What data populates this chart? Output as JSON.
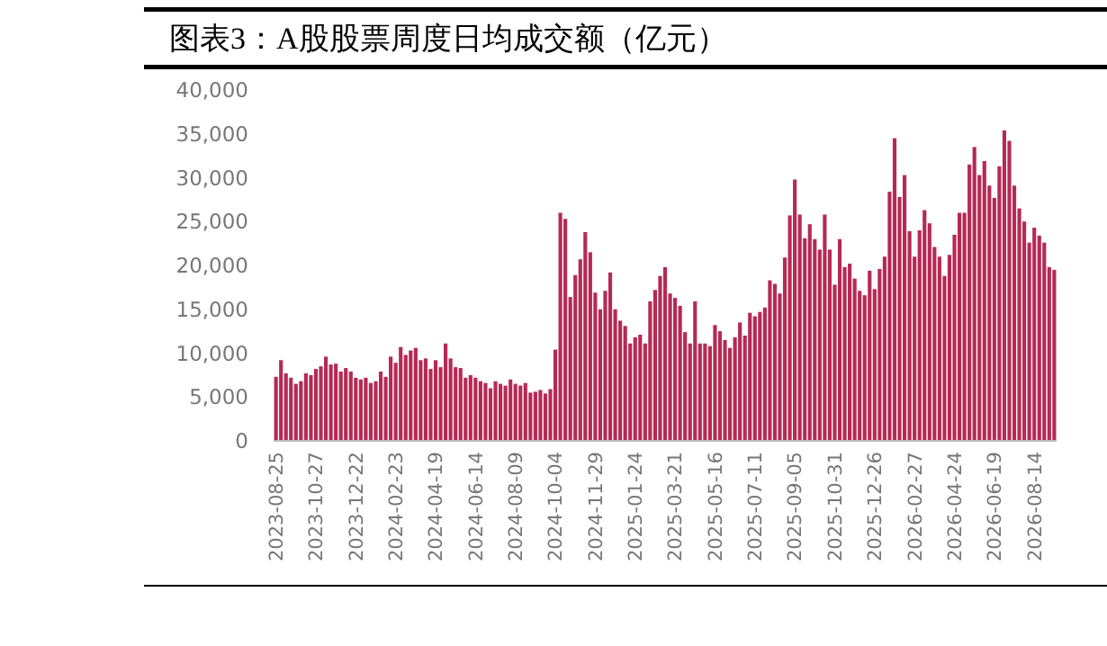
{
  "chart_data": {
    "type": "bar",
    "title": "图表3：A股股票周度日均成交额（亿元）",
    "categories": [
      "2023-08-25",
      null,
      null,
      null,
      null,
      null,
      null,
      null,
      "2023-10-27",
      null,
      null,
      null,
      null,
      null,
      null,
      null,
      "2023-12-22",
      null,
      null,
      null,
      null,
      null,
      null,
      null,
      "2024-02-23",
      null,
      null,
      null,
      null,
      null,
      null,
      null,
      "2024-04-19",
      null,
      null,
      null,
      null,
      null,
      null,
      null,
      "2024-06-14",
      null,
      null,
      null,
      null,
      null,
      null,
      null,
      "2024-08-09",
      null,
      null,
      null,
      null,
      null,
      null,
      null,
      "2024-10-04",
      null,
      null,
      null,
      null,
      null,
      null,
      null,
      "2024-11-29",
      null,
      null,
      null,
      null,
      null,
      null,
      null,
      "2025-01-24",
      null,
      null,
      null,
      null,
      null,
      null,
      null,
      "2025-03-21",
      null,
      null,
      null,
      null,
      null,
      null,
      null,
      "2025-05-16",
      null,
      null,
      null,
      null,
      null,
      null,
      null,
      "2025-07-11",
      null,
      null,
      null,
      null,
      null,
      null,
      null,
      "2025-09-05",
      null,
      null,
      null,
      null,
      null,
      null,
      null,
      "2025-10-31",
      null,
      null,
      null,
      null,
      null,
      null,
      null,
      "2025-12-26",
      null,
      null,
      null,
      null,
      null,
      null,
      null,
      "2026-02-27",
      null,
      null,
      null,
      null,
      null,
      null,
      null,
      "2026-04-24",
      null,
      null,
      null,
      null,
      null,
      null,
      null,
      "2026-06-19",
      null,
      null,
      null,
      null,
      null,
      null,
      null,
      "2026-08-14",
      null,
      null,
      null,
      null
    ],
    "values": [
      7300,
      9200,
      7700,
      7200,
      6500,
      6800,
      7700,
      7500,
      8200,
      8500,
      9600,
      8700,
      8800,
      7900,
      8300,
      7900,
      7200,
      7000,
      7200,
      6600,
      6800,
      7900,
      7300,
      9600,
      8900,
      10700,
      9800,
      10300,
      10600,
      9200,
      9400,
      8200,
      9200,
      8400,
      11100,
      9400,
      8400,
      8300,
      7200,
      7500,
      7200,
      6800,
      6600,
      6000,
      6800,
      6500,
      6300,
      7000,
      6500,
      6300,
      6600,
      5500,
      5600,
      5800,
      5400,
      5900,
      10400,
      26000,
      25300,
      16400,
      18900,
      20700,
      23800,
      21500,
      16900,
      15000,
      17100,
      19200,
      15000,
      13700,
      13100,
      11100,
      11800,
      12100,
      11100,
      15900,
      17200,
      18800,
      19800,
      16800,
      16300,
      15400,
      12400,
      11100,
      15900,
      11100,
      11100,
      10800,
      13200,
      12500,
      11500,
      10600,
      11800,
      13500,
      12000,
      14600,
      14200,
      14700,
      15200,
      18300,
      17900,
      16800,
      20900,
      25700,
      29800,
      25800,
      23100,
      24700,
      23000,
      21800,
      25800,
      21800,
      17800,
      23000,
      19800,
      20200,
      18500,
      17100,
      16600,
      19400,
      17300,
      19600,
      21000,
      28400,
      34500,
      27800,
      30300,
      23900,
      21000,
      24000,
      26300,
      24800,
      22100,
      21000,
      18800,
      21200,
      23500,
      26000,
      26000,
      31500,
      33500,
      30300,
      31900,
      29100,
      27700,
      31300,
      35400,
      34200,
      29100,
      26500,
      25000,
      22600,
      24300,
      23400,
      22600,
      19800,
      19500
    ],
    "color": "#b52a55",
    "ylim": [
      0,
      40000
    ],
    "yticks": [
      0,
      {
        "value": 5000,
        "label": "5,000"
      },
      {
        "value": 10000,
        "label": "10,000"
      },
      {
        "value": 15000,
        "label": "15,000"
      },
      {
        "value": 20000,
        "label": "20,000"
      },
      {
        "value": 25000,
        "label": "25,000"
      },
      {
        "value": 30000,
        "label": "30,000"
      },
      {
        "value": 35000,
        "label": "35,000"
      },
      {
        "value": 40000,
        "label": "40,000"
      }
    ]
  }
}
